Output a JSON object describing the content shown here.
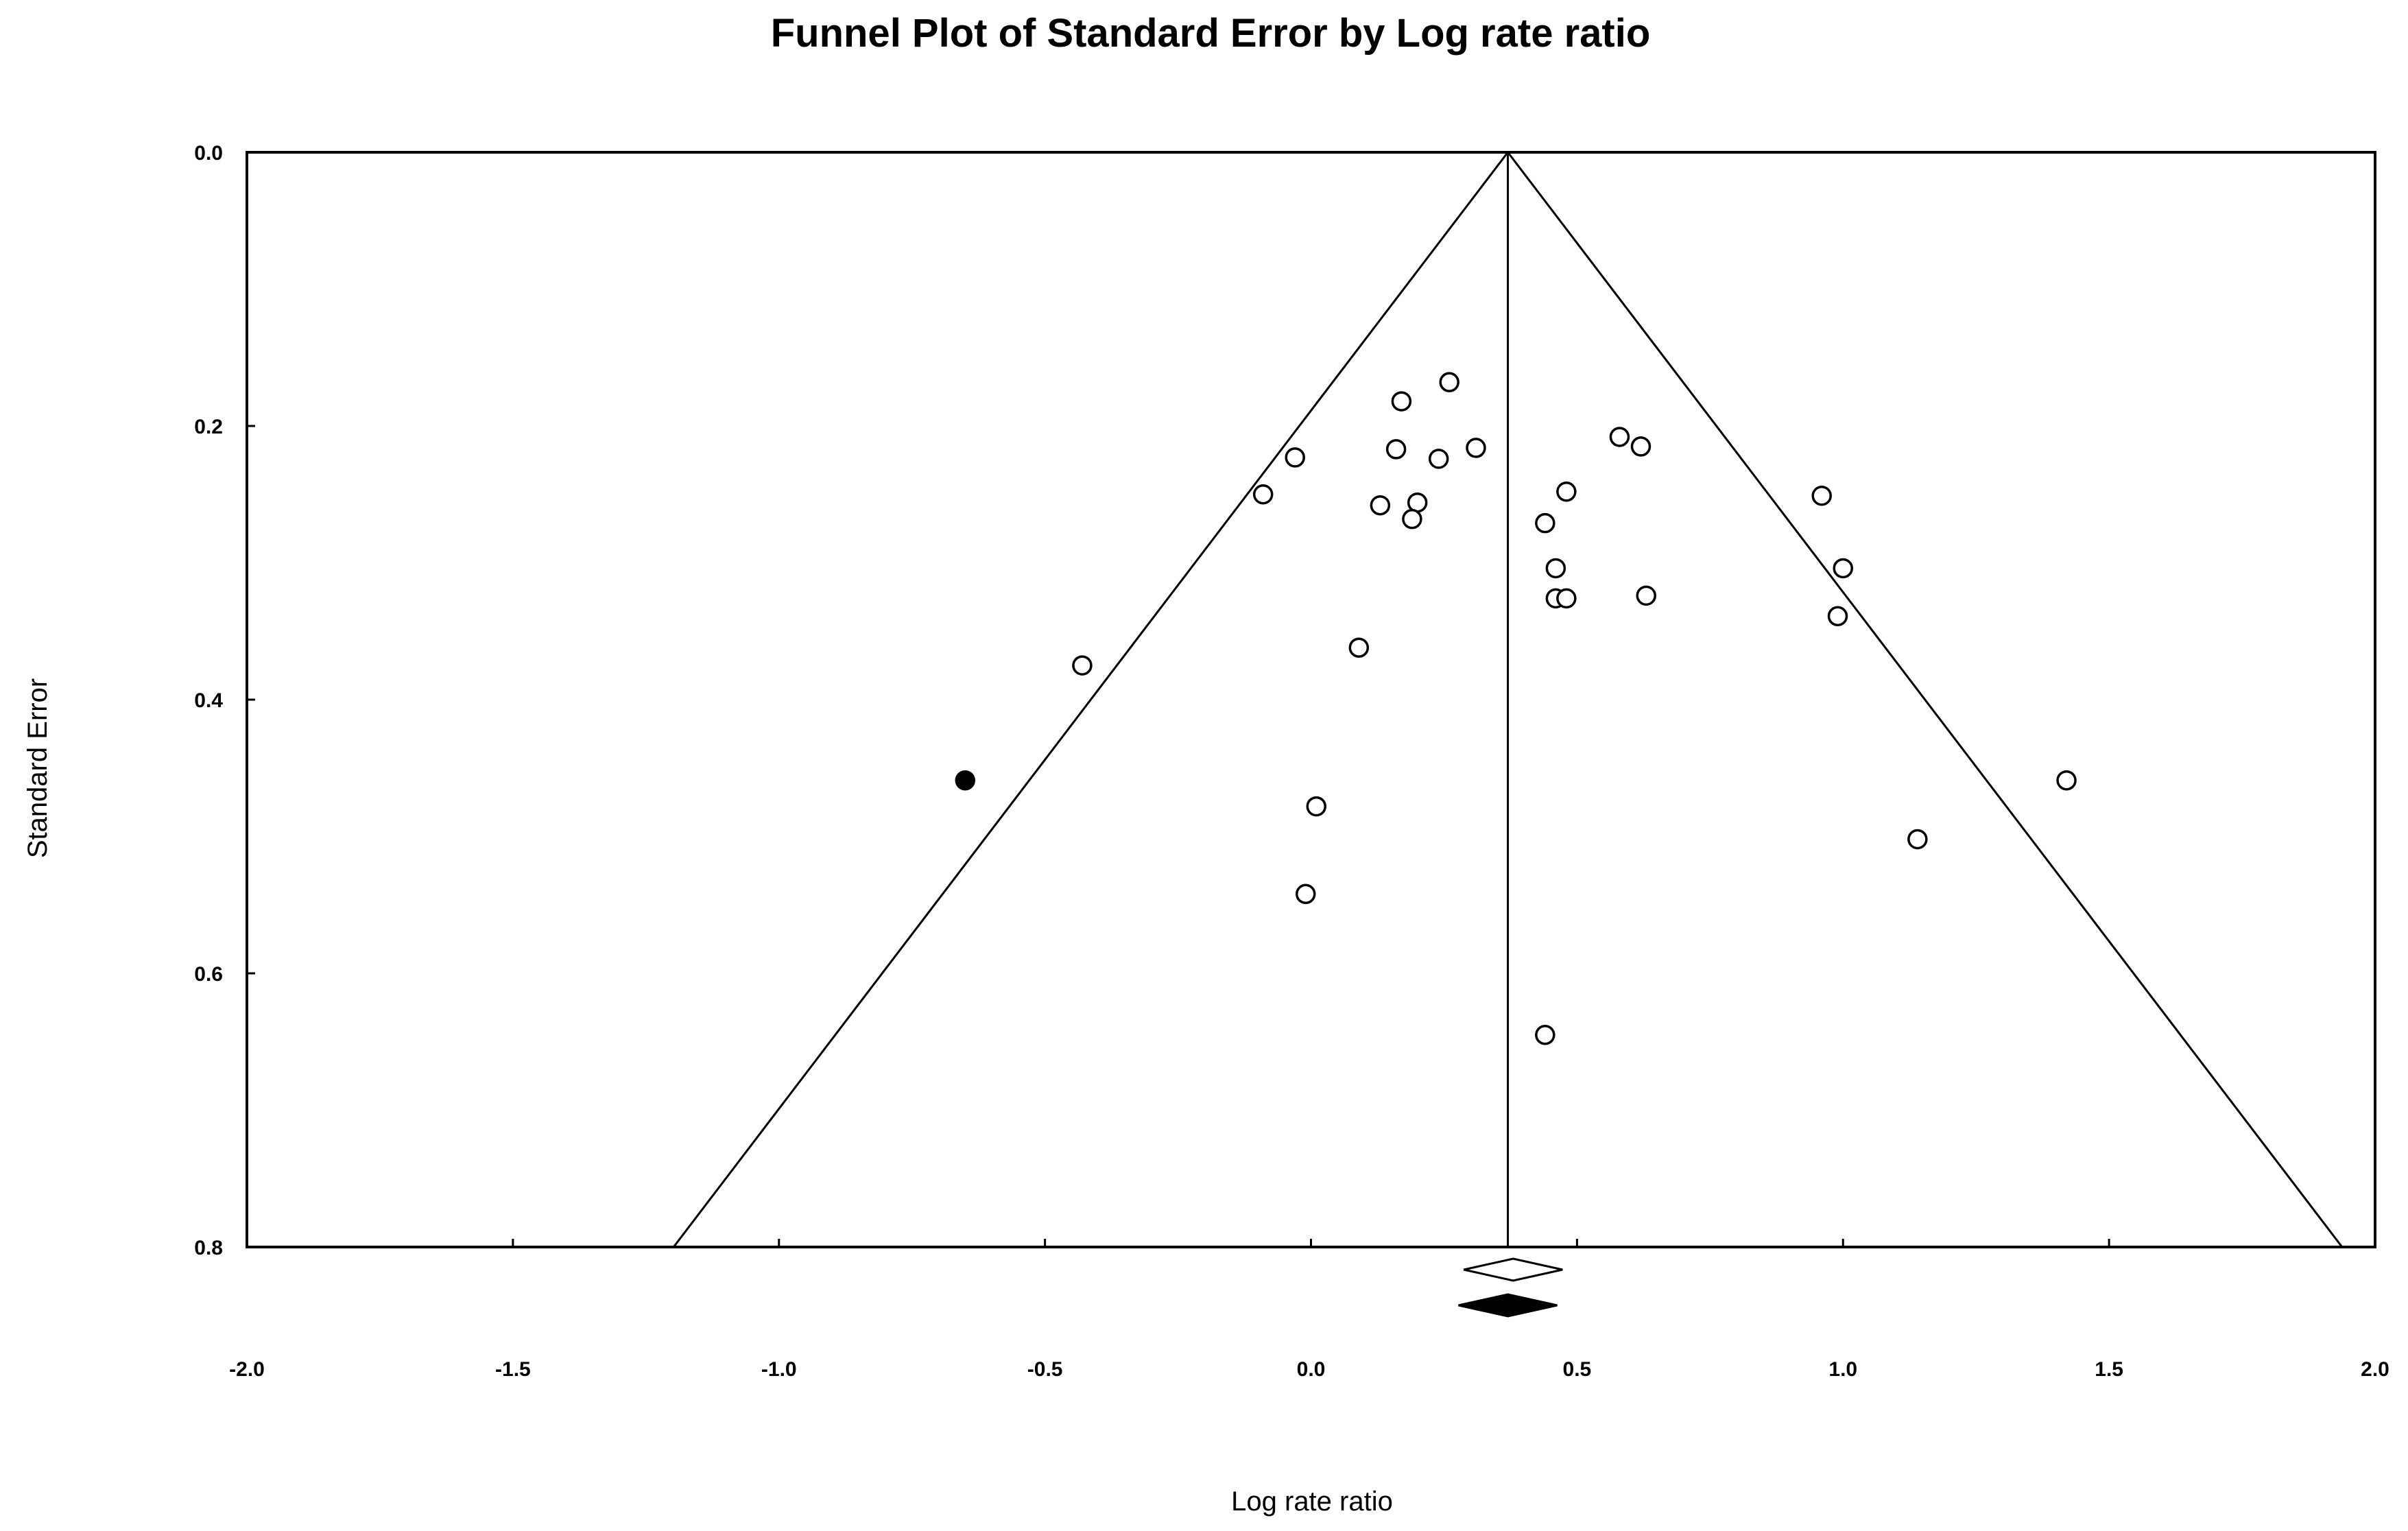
{
  "chart_data": {
    "type": "scatter",
    "title": "Funnel Plot of Standard Error by Log rate ratio",
    "xlabel": "Log rate ratio",
    "ylabel": "Standard Error",
    "xlim": [
      -2.0,
      2.0
    ],
    "ylim": [
      0.0,
      0.8
    ],
    "y_inverted": true,
    "grid": false,
    "legend": "none",
    "x_ticks": [
      "-2.0",
      "-1.5",
      "-1.0",
      "-0.5",
      "0.0",
      "0.5",
      "1.0",
      "1.5",
      "2.0"
    ],
    "x_tick_values": [
      -2.0,
      -1.5,
      -1.0,
      -0.5,
      0.0,
      0.5,
      1.0,
      1.5,
      2.0
    ],
    "y_ticks": [
      "0.0",
      "0.2",
      "0.4",
      "0.6",
      "0.8"
    ],
    "y_tick_values": [
      0.0,
      0.2,
      0.4,
      0.6,
      0.8
    ],
    "funnel_center": 0.37,
    "observed_studies": [
      {
        "x": 0.26,
        "y": 0.168
      },
      {
        "x": 0.17,
        "y": 0.182
      },
      {
        "x": 0.16,
        "y": 0.217
      },
      {
        "x": 0.31,
        "y": 0.216
      },
      {
        "x": 0.24,
        "y": 0.224
      },
      {
        "x": -0.03,
        "y": 0.223
      },
      {
        "x": -0.09,
        "y": 0.25
      },
      {
        "x": 0.13,
        "y": 0.258
      },
      {
        "x": 0.2,
        "y": 0.256
      },
      {
        "x": 0.19,
        "y": 0.268
      },
      {
        "x": 0.58,
        "y": 0.208
      },
      {
        "x": 0.62,
        "y": 0.215
      },
      {
        "x": 0.48,
        "y": 0.248
      },
      {
        "x": 0.44,
        "y": 0.271
      },
      {
        "x": 0.96,
        "y": 0.251
      },
      {
        "x": 1.0,
        "y": 0.304
      },
      {
        "x": 0.46,
        "y": 0.304
      },
      {
        "x": 0.46,
        "y": 0.326
      },
      {
        "x": 0.48,
        "y": 0.326
      },
      {
        "x": 0.63,
        "y": 0.324
      },
      {
        "x": 0.99,
        "y": 0.339
      },
      {
        "x": 0.09,
        "y": 0.362
      },
      {
        "x": -0.43,
        "y": 0.375
      },
      {
        "x": 0.01,
        "y": 0.478
      },
      {
        "x": 1.42,
        "y": 0.459
      },
      {
        "x": 1.14,
        "y": 0.502
      },
      {
        "x": -0.01,
        "y": 0.542
      },
      {
        "x": 0.44,
        "y": 0.645
      }
    ],
    "imputed_studies": [
      {
        "x": -0.65,
        "y": 0.459
      }
    ],
    "observed_summary": 0.38,
    "adjusted_summary": 0.37,
    "colors": {
      "axis": "#000000",
      "funnel": "#000000",
      "observed_marker_fill": "#ffffff",
      "imputed_marker_fill": "#000000"
    }
  }
}
